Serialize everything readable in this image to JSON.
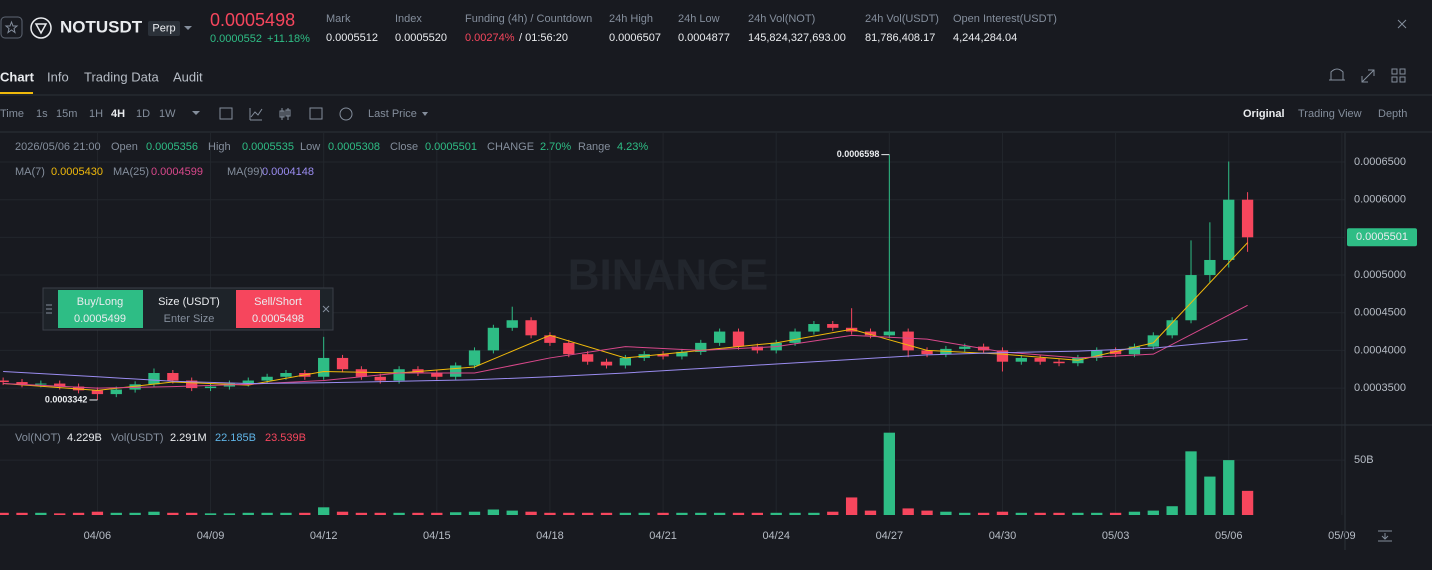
{
  "header": {
    "symbol": "NOTUSDT",
    "contract": "Perp",
    "price": "0.0005498",
    "change": "0.0000552",
    "change_pct": "+11.18%",
    "stats": [
      {
        "label": "Mark",
        "value": "0.0005512"
      },
      {
        "label": "Index",
        "value": "0.0005520"
      },
      {
        "label": "Funding (4h) / Countdown",
        "value": "0.00274%",
        "countdown": "/ 01:56:20"
      },
      {
        "label": "24h High",
        "value": "0.0006507"
      },
      {
        "label": "24h Low",
        "value": "0.0004877"
      },
      {
        "label": "24h Vol(NOT)",
        "value": "145,824,327,693.00"
      },
      {
        "label": "24h Vol(USDT)",
        "value": "81,786,408.17"
      },
      {
        "label": "Open Interest(USDT)",
        "value": "4,244,284.04"
      }
    ]
  },
  "tabs": [
    "Chart",
    "Info",
    "Trading Data",
    "Audit"
  ],
  "toolbar": {
    "intervals": [
      "Time",
      "1s",
      "15m",
      "1H",
      "4H",
      "1D",
      "1W"
    ],
    "price_type": "Last Price",
    "views": [
      "Original",
      "Trading View",
      "Depth"
    ]
  },
  "legend": {
    "time": "2026/05/06 21:00",
    "items": [
      {
        "label": "Open",
        "value": "0.0005356"
      },
      {
        "label": "High",
        "value": "0.0005535"
      },
      {
        "label": "Low",
        "value": "0.0005308"
      },
      {
        "label": "Close",
        "value": "0.0005501"
      },
      {
        "label": "CHANGE",
        "value": "2.70%"
      },
      {
        "label": "Range",
        "value": "4.23%"
      }
    ]
  },
  "vol_legend": [
    {
      "label": "Vol(NOT)",
      "value": "4.229B"
    },
    {
      "label": "Vol(USDT)",
      "value": "2.291M"
    },
    {
      "value": "22.185B"
    },
    {
      "value": "23.539B"
    }
  ],
  "order_panel": {
    "buy": "Buy/Long",
    "buy_price": "0.0005499",
    "size": "Size (USDT)",
    "size_placeholder": "Enter Size",
    "sell": "Sell/Short",
    "sell_price": "0.0005498"
  },
  "watermark": "BINANCE",
  "chart_data": {
    "type": "candlestick",
    "up_color": "#2ebd85",
    "down_color": "#f6465d",
    "xlim": [
      -62,
      794
    ],
    "xticks": [
      {
        "value": 0,
        "label": "04/06"
      },
      {
        "value": 72,
        "label": "04/09"
      },
      {
        "value": 144,
        "label": "04/12"
      },
      {
        "value": 216,
        "label": "04/15"
      },
      {
        "value": 288,
        "label": "04/18"
      },
      {
        "value": 360,
        "label": "04/21"
      },
      {
        "value": 432,
        "label": "04/24"
      },
      {
        "value": 504,
        "label": "04/27"
      },
      {
        "value": 576,
        "label": "04/30"
      },
      {
        "value": 648,
        "label": "05/03"
      },
      {
        "value": 720,
        "label": "05/06"
      },
      {
        "value": 792,
        "label": "05/09"
      }
    ],
    "ylim": [
      0.000301,
      0.0006885
    ],
    "yticks": [
      {
        "value": 0.00035,
        "label": "0.0003500"
      },
      {
        "value": 0.0004,
        "label": "0.0004000"
      },
      {
        "value": 0.00045,
        "label": "0.0004500"
      },
      {
        "value": 0.0005,
        "label": "0.0005000"
      },
      {
        "value": 0.00055,
        "label": "0.0005500"
      },
      {
        "value": 0.0006,
        "label": "0.0006000"
      },
      {
        "value": 0.00065,
        "label": "0.0006500"
      }
    ],
    "candles": [
      [
        -60,
        0.00036,
        0.000364,
        0.000354,
        0.000358
      ],
      [
        -48,
        0.000358,
        0.000362,
        0.000351,
        0.000355
      ],
      [
        -36,
        0.000355,
        0.00036,
        0.000351,
        0.000356
      ],
      [
        -24,
        0.000356,
        0.00036,
        0.000348,
        0.000352
      ],
      [
        -12,
        0.000352,
        0.000356,
        0.000343,
        0.000347
      ],
      [
        0,
        0.000347,
        0.000351,
        0.0003342,
        0.000342
      ],
      [
        12,
        0.000342,
        0.000352,
        0.000338,
        0.000348
      ],
      [
        24,
        0.000348,
        0.000359,
        0.000344,
        0.000355
      ],
      [
        36,
        0.000355,
        0.000376,
        0.000351,
        0.00037
      ],
      [
        48,
        0.00037,
        0.000374,
        0.000356,
        0.00036
      ],
      [
        60,
        0.00036,
        0.000364,
        0.000346,
        0.00035
      ],
      [
        72,
        0.00035,
        0.000356,
        0.000346,
        0.000352
      ],
      [
        84,
        0.000352,
        0.00036,
        0.000348,
        0.000356
      ],
      [
        96,
        0.000356,
        0.000364,
        0.000352,
        0.00036
      ],
      [
        108,
        0.00036,
        0.000369,
        0.000356,
        0.000365
      ],
      [
        120,
        0.000365,
        0.000374,
        0.000361,
        0.00037
      ],
      [
        132,
        0.00037,
        0.000374,
        0.000361,
        0.000365
      ],
      [
        144,
        0.000365,
        0.000418,
        0.000361,
        0.00039
      ],
      [
        156,
        0.00039,
        0.000394,
        0.000371,
        0.000375
      ],
      [
        168,
        0.000375,
        0.000379,
        0.000361,
        0.000365
      ],
      [
        180,
        0.000365,
        0.000369,
        0.000356,
        0.00036
      ],
      [
        192,
        0.00036,
        0.000379,
        0.000356,
        0.000375
      ],
      [
        204,
        0.000375,
        0.000379,
        0.000366,
        0.00037
      ],
      [
        216,
        0.00037,
        0.000374,
        0.000361,
        0.000365
      ],
      [
        228,
        0.000365,
        0.000384,
        0.000361,
        0.00038
      ],
      [
        240,
        0.00038,
        0.000404,
        0.000376,
        0.0004
      ],
      [
        252,
        0.0004,
        0.000434,
        0.000396,
        0.00043
      ],
      [
        264,
        0.00043,
        0.000458,
        0.000426,
        0.00044
      ],
      [
        276,
        0.00044,
        0.000444,
        0.000416,
        0.00042
      ],
      [
        288,
        0.00042,
        0.000424,
        0.000406,
        0.00041
      ],
      [
        300,
        0.00041,
        0.000414,
        0.000391,
        0.000395
      ],
      [
        312,
        0.000395,
        0.000399,
        0.000381,
        0.000385
      ],
      [
        324,
        0.000385,
        0.000389,
        0.000376,
        0.00038
      ],
      [
        336,
        0.00038,
        0.000394,
        0.000376,
        0.00039
      ],
      [
        348,
        0.00039,
        0.000399,
        0.000386,
        0.000395
      ],
      [
        360,
        0.000395,
        0.000399,
        0.000388,
        0.000392
      ],
      [
        372,
        0.000392,
        0.000402,
        0.000388,
        0.000398
      ],
      [
        384,
        0.000398,
        0.000414,
        0.000394,
        0.00041
      ],
      [
        396,
        0.00041,
        0.000429,
        0.000406,
        0.000425
      ],
      [
        408,
        0.000425,
        0.000429,
        0.000401,
        0.000405
      ],
      [
        420,
        0.000405,
        0.000409,
        0.000396,
        0.0004
      ],
      [
        432,
        0.0004,
        0.000414,
        0.000396,
        0.00041
      ],
      [
        444,
        0.00041,
        0.000429,
        0.000406,
        0.000425
      ],
      [
        456,
        0.000425,
        0.000439,
        0.000421,
        0.000435
      ],
      [
        468,
        0.000435,
        0.000439,
        0.000426,
        0.00043
      ],
      [
        480,
        0.00043,
        0.000456,
        0.000421,
        0.000425
      ],
      [
        492,
        0.000425,
        0.000429,
        0.000416,
        0.00042
      ],
      [
        504,
        0.00042,
        0.0006598,
        0.000416,
        0.000425
      ],
      [
        516,
        0.000425,
        0.000429,
        0.000391,
        0.0004
      ],
      [
        528,
        0.0004,
        0.000404,
        0.000391,
        0.000395
      ],
      [
        540,
        0.000395,
        0.000406,
        0.000391,
        0.000402
      ],
      [
        552,
        0.000402,
        0.000409,
        0.000398,
        0.000405
      ],
      [
        564,
        0.000405,
        0.000409,
        0.000396,
        0.0004
      ],
      [
        576,
        0.0004,
        0.000404,
        0.000372,
        0.000385
      ],
      [
        588,
        0.000385,
        0.000394,
        0.000381,
        0.00039
      ],
      [
        600,
        0.00039,
        0.000394,
        0.000381,
        0.000385
      ],
      [
        612,
        0.000385,
        0.000389,
        0.000379,
        0.000383
      ],
      [
        624,
        0.000383,
        0.000394,
        0.000379,
        0.00039
      ],
      [
        636,
        0.00039,
        0.000404,
        0.000386,
        0.0004
      ],
      [
        648,
        0.0004,
        0.000404,
        0.000391,
        0.000395
      ],
      [
        660,
        0.000395,
        0.000409,
        0.000391,
        0.000405
      ],
      [
        672,
        0.000405,
        0.000424,
        0.000401,
        0.00042
      ],
      [
        684,
        0.00042,
        0.000444,
        0.000416,
        0.00044
      ],
      [
        696,
        0.00044,
        0.000546,
        0.000436,
        0.0005
      ],
      [
        708,
        0.0005,
        0.00057,
        0.00049,
        0.00052
      ],
      [
        720,
        0.00052,
        0.0006507,
        0.00051,
        0.0006
      ],
      [
        732,
        0.0006,
        0.00061,
        0.0005308,
        0.0005501
      ]
    ],
    "ma_x": [
      -60,
      0,
      48,
      96,
      144,
      192,
      240,
      288,
      336,
      384,
      432,
      480,
      528,
      576,
      624,
      672,
      732
    ],
    "series": [
      {
        "name": "MA(7)",
        "color": "#f0b90b",
        "legend_value": "0.0005430",
        "values": [
          0.000356,
          0.000347,
          0.000358,
          0.000354,
          0.000372,
          0.00037,
          0.000378,
          0.00042,
          0.00039,
          0.0004,
          0.00041,
          0.000428,
          0.0004,
          0.000395,
          0.000387,
          0.00041,
          0.000543
        ]
      },
      {
        "name": "MA(25)",
        "color": "#d9488b",
        "legend_value": "0.0004599",
        "values": [
          0.000356,
          0.00035,
          0.000352,
          0.000355,
          0.00036,
          0.00037,
          0.00037,
          0.00039,
          0.000405,
          0.0004,
          0.000405,
          0.00042,
          0.000415,
          0.000398,
          0.00039,
          0.000395,
          0.0004599
        ]
      },
      {
        "name": "MA(99)",
        "color": "#9a8cf0",
        "legend_value": "0.0004148",
        "values": [
          0.000372,
          0.000365,
          0.000359,
          0.000356,
          0.000357,
          0.000359,
          0.000361,
          0.000365,
          0.00037,
          0.000376,
          0.000382,
          0.000388,
          0.000394,
          0.000397,
          0.000399,
          0.000403,
          0.0004148
        ]
      }
    ],
    "volume": {
      "color_up": "#2ebd85",
      "color_down": "#f6465d",
      "ylim": [
        0,
        82
      ],
      "yticks": [
        {
          "value": 50,
          "label": "50B"
        }
      ],
      "values": [
        2,
        2,
        2,
        1.5,
        2,
        3,
        2,
        2,
        3,
        2,
        2,
        1.5,
        1.5,
        2,
        2,
        2,
        2,
        7,
        3,
        2,
        2,
        2,
        2,
        2,
        2.5,
        3,
        5,
        4,
        3,
        2,
        2,
        2,
        2,
        2,
        2,
        2,
        2,
        2,
        2,
        2,
        2,
        2,
        2,
        2,
        3,
        16,
        4,
        75,
        6,
        4,
        3,
        2,
        2,
        3,
        2,
        2,
        2,
        2,
        2,
        2,
        3,
        4,
        8,
        58,
        35,
        50,
        22
      ]
    }
  }
}
